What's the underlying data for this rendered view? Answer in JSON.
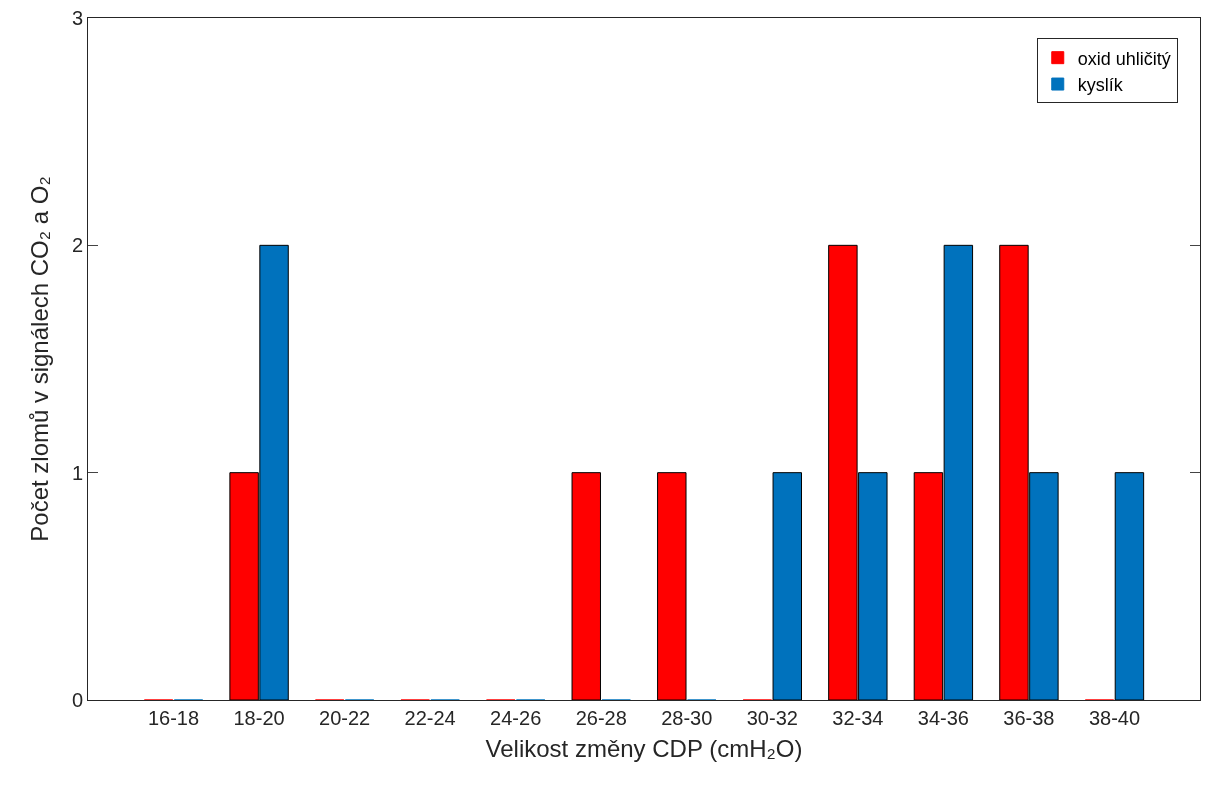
{
  "chart_data": {
    "type": "bar",
    "xlabel": "Velikost změny CDP (cmH₂O)",
    "ylabel": "Počet zlomů v signálech CO₂ a O₂",
    "categories": [
      "16-18",
      "18-20",
      "20-22",
      "22-24",
      "24-26",
      "26-28",
      "28-30",
      "30-32",
      "32-34",
      "34-36",
      "36-38",
      "38-40"
    ],
    "series": [
      {
        "name": "oxid uhličitý",
        "color": "#ff0000",
        "values": [
          0,
          1,
          0,
          0,
          0,
          1,
          1,
          0,
          2,
          1,
          2,
          0
        ]
      },
      {
        "name": "kyslík",
        "color": "#0072bd",
        "values": [
          0,
          2,
          0,
          0,
          0,
          0,
          0,
          1,
          1,
          2,
          1,
          1
        ]
      }
    ],
    "ylim": [
      0,
      3
    ],
    "yticks": [
      0,
      1,
      2,
      3
    ],
    "grid": false,
    "legend": "top right"
  }
}
